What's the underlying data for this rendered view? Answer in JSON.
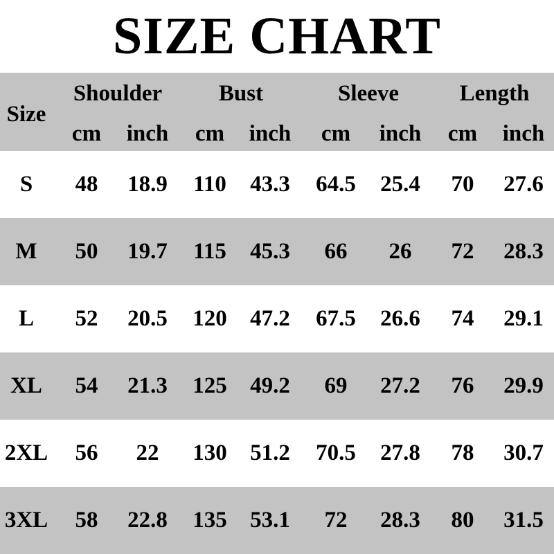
{
  "title": "SIZE CHART",
  "header": {
    "size": "Size",
    "groups": [
      "Shoulder",
      "Bust",
      "Sleeve",
      "Length"
    ],
    "units": [
      "cm",
      "inch",
      "cm",
      "inch",
      "cm",
      "inch",
      "cm",
      "inch"
    ]
  },
  "rows": [
    [
      "S",
      "48",
      "18.9",
      "110",
      "43.3",
      "64.5",
      "25.4",
      "70",
      "27.6"
    ],
    [
      "M",
      "50",
      "19.7",
      "115",
      "45.3",
      "66",
      "26",
      "72",
      "28.3"
    ],
    [
      "L",
      "52",
      "20.5",
      "120",
      "47.2",
      "67.5",
      "26.6",
      "74",
      "29.1"
    ],
    [
      "XL",
      "54",
      "21.3",
      "125",
      "49.2",
      "69",
      "27.2",
      "76",
      "29.9"
    ],
    [
      "2XL",
      "56",
      "22",
      "130",
      "51.2",
      "70.5",
      "27.8",
      "78",
      "30.7"
    ],
    [
      "3XL",
      "58",
      "22.8",
      "135",
      "53.1",
      "72",
      "28.3",
      "80",
      "31.5"
    ]
  ],
  "colors": {
    "stripe": "#c3c3c3",
    "background": "#ffffff",
    "text": "#000000"
  }
}
